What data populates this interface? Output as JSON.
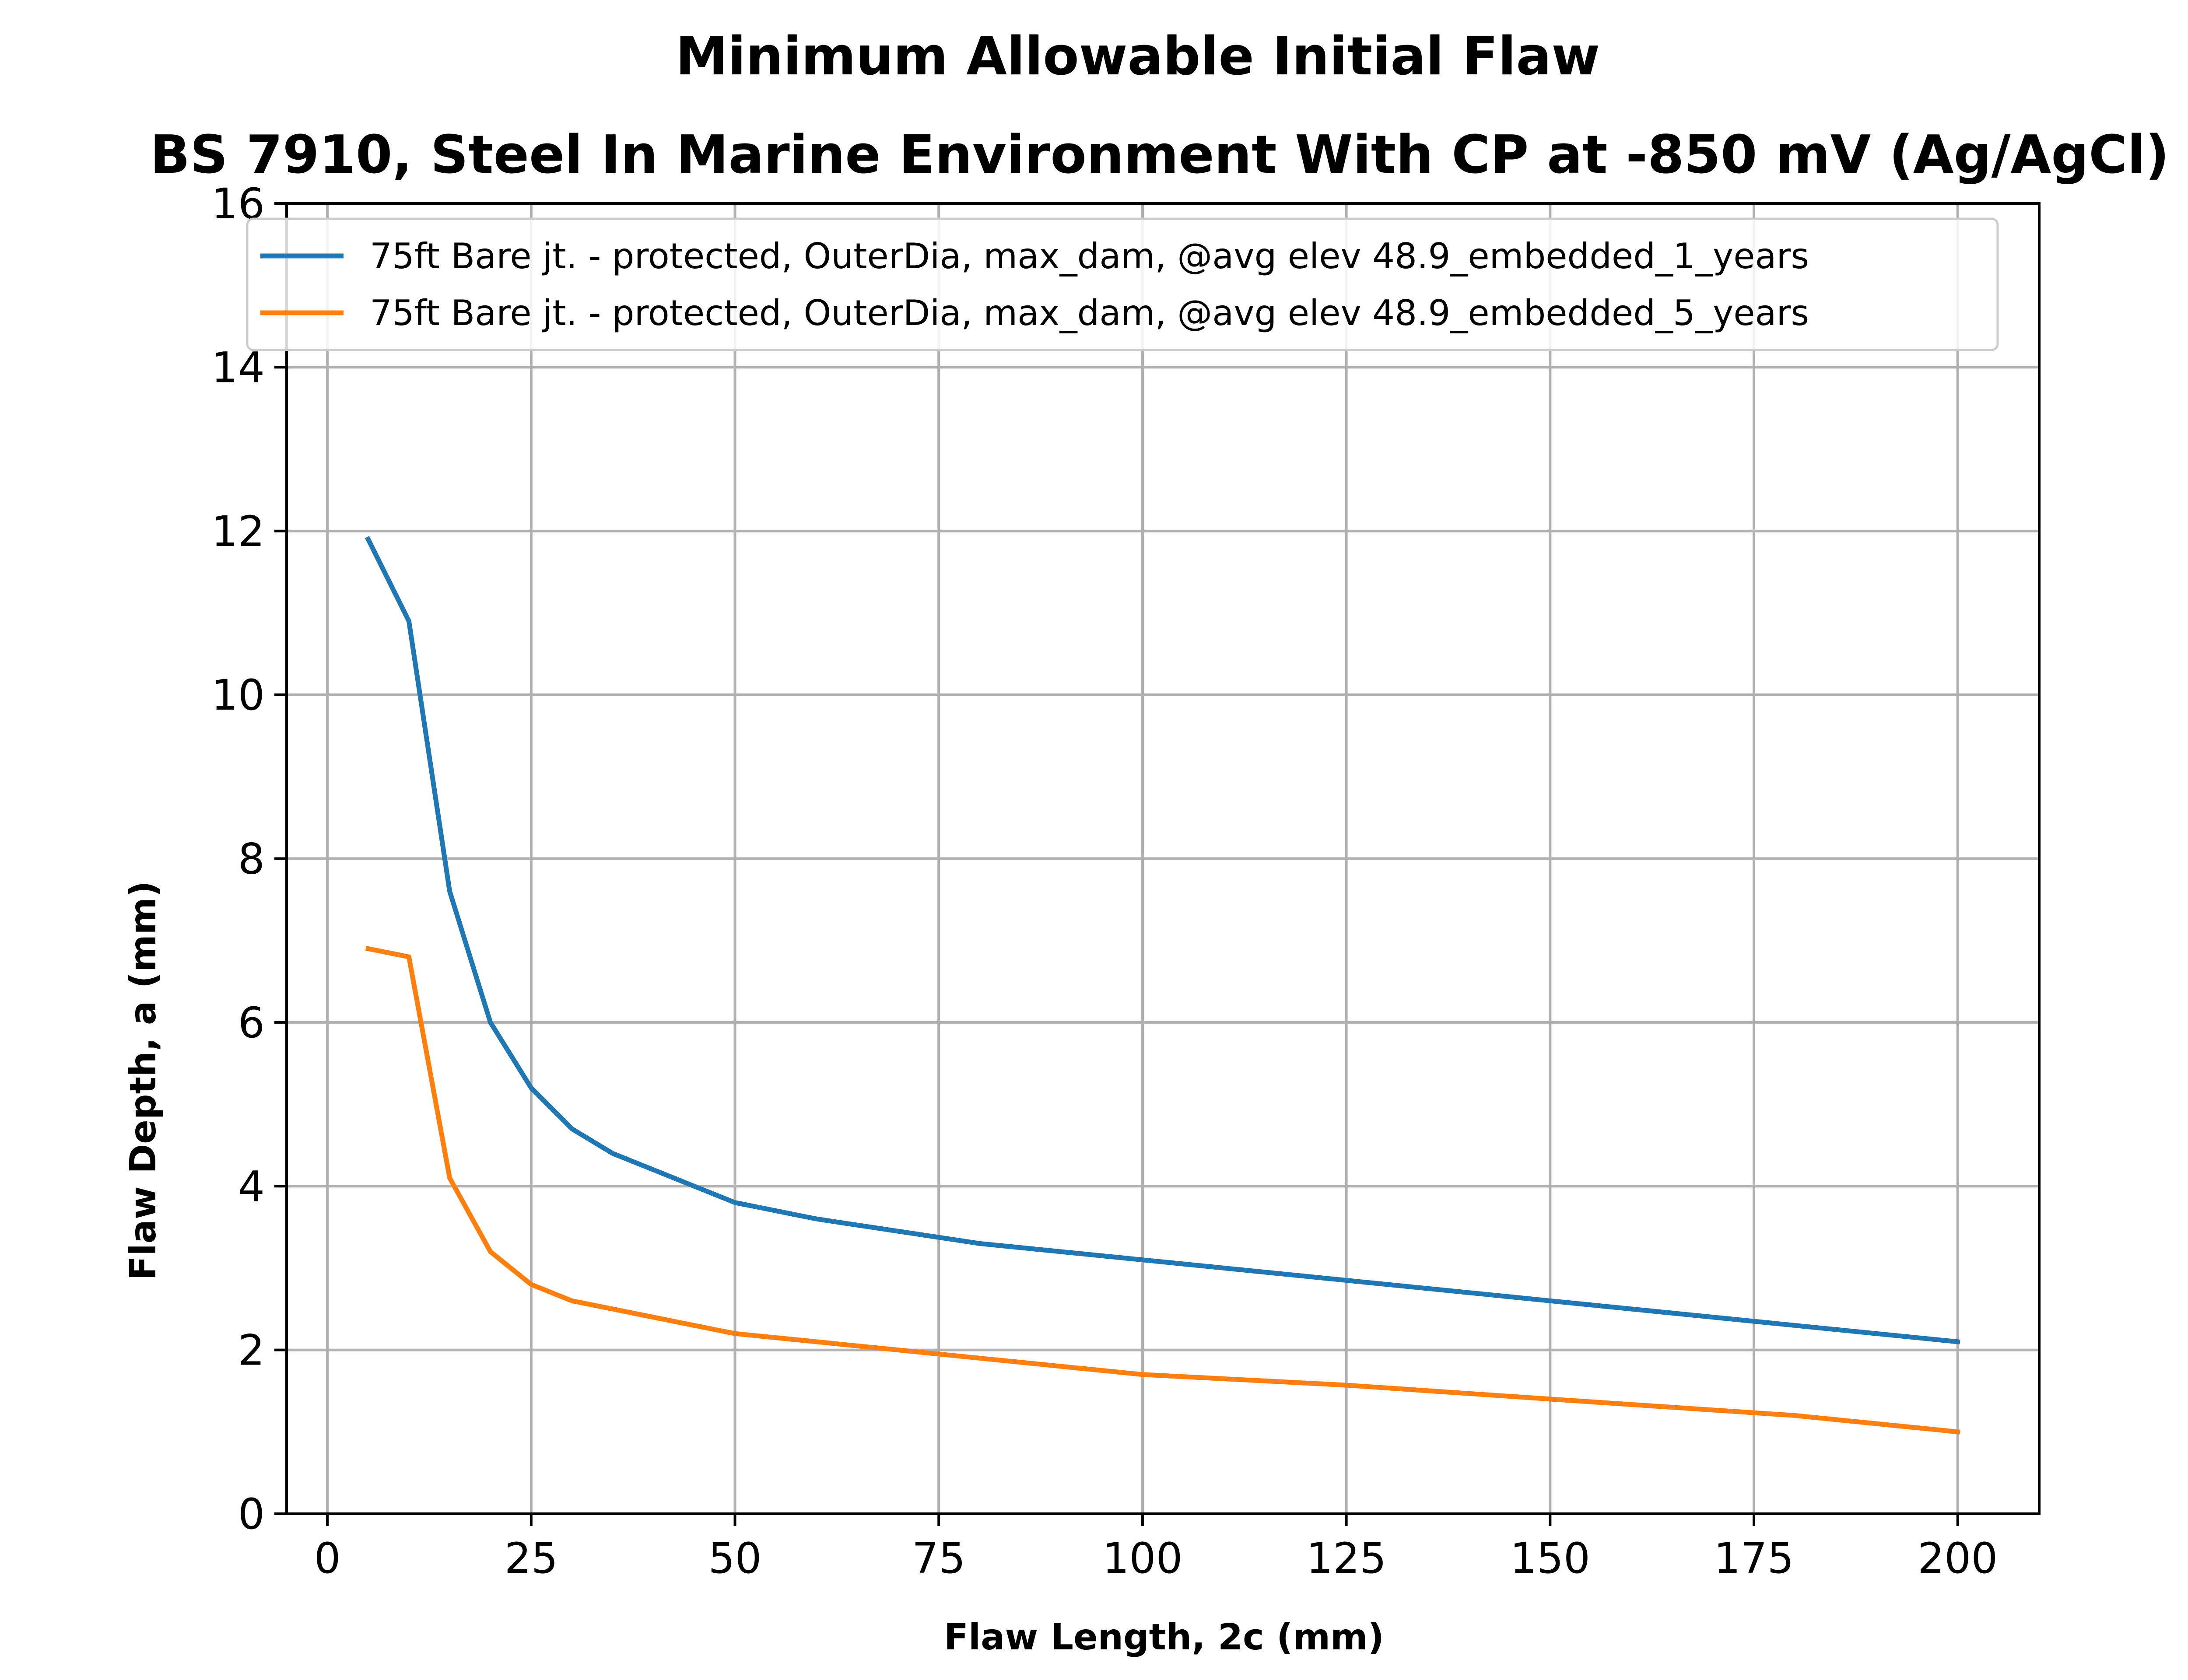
{
  "chart_data": {
    "type": "line",
    "title": "Minimum Allowable Initial Flaw",
    "subtitle": "BS 7910, Steel In Marine Environment With CP at -850 mV (Ag/AgCl)",
    "xlabel": "Flaw Length, 2c (mm)",
    "ylabel": "Flaw Depth, a (mm)",
    "xlim": [
      -5,
      210
    ],
    "ylim": [
      0,
      16
    ],
    "xticks": [
      0,
      25,
      50,
      75,
      100,
      125,
      150,
      175,
      200
    ],
    "yticks": [
      0,
      2,
      4,
      6,
      8,
      10,
      12,
      14,
      16
    ],
    "grid": true,
    "legend_position": "top",
    "series": [
      {
        "name": "75ft Bare jt.  - protected, OuterDia, max_dam, @avg elev 48.9_embedded_1_years",
        "color": "#1f77b4",
        "x": [
          5,
          10,
          15,
          20,
          25,
          30,
          35,
          40,
          45,
          50,
          60,
          70,
          80,
          90,
          100,
          125,
          150,
          175,
          200
        ],
        "y": [
          11.9,
          10.9,
          7.6,
          6.0,
          5.2,
          4.7,
          4.4,
          4.2,
          4.0,
          3.8,
          3.6,
          3.45,
          3.3,
          3.2,
          3.1,
          2.85,
          2.6,
          2.35,
          2.1
        ]
      },
      {
        "name": "75ft Bare jt.  - protected, OuterDia, max_dam, @avg elev 48.9_embedded_5_years",
        "color": "#ff7f0e",
        "x": [
          5,
          10,
          15,
          20,
          25,
          30,
          40,
          50,
          60,
          75,
          100,
          125,
          150,
          180,
          200
        ],
        "y": [
          6.9,
          6.8,
          4.1,
          3.2,
          2.8,
          2.6,
          2.4,
          2.2,
          2.1,
          1.95,
          1.7,
          1.57,
          1.4,
          1.2,
          1.0
        ]
      }
    ]
  }
}
